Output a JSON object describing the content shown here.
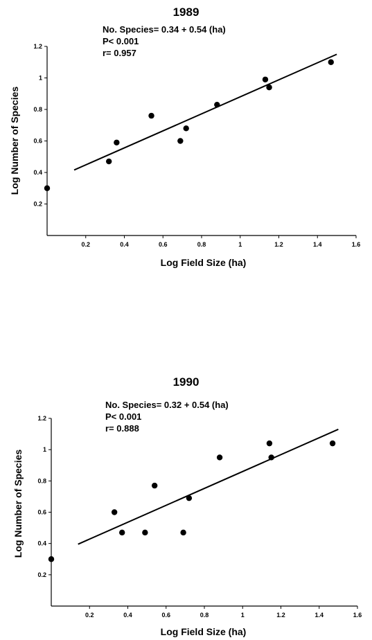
{
  "chart_data": [
    {
      "type": "scatter",
      "title": "1989",
      "xlabel": "Log Field Size (ha)",
      "ylabel": "Log Number of Species",
      "xlim": [
        0,
        1.6
      ],
      "ylim": [
        0,
        1.2
      ],
      "xticks": [
        "0.2",
        "0.4",
        "0.6",
        "0.8",
        "1",
        "1.2",
        "1.4",
        "1.6"
      ],
      "yticks": [
        "0.2",
        "0.4",
        "0.6",
        "0.8",
        "1",
        "1.2"
      ],
      "annotations": [
        "No. Species= 0.34 + 0.54 (ha)",
        "P< 0.001",
        "r= 0.957"
      ],
      "points": [
        {
          "x": 0.0,
          "y": 0.3
        },
        {
          "x": 0.32,
          "y": 0.47
        },
        {
          "x": 0.36,
          "y": 0.59
        },
        {
          "x": 0.54,
          "y": 0.76
        },
        {
          "x": 0.69,
          "y": 0.6
        },
        {
          "x": 0.72,
          "y": 0.68
        },
        {
          "x": 0.88,
          "y": 0.83
        },
        {
          "x": 1.13,
          "y": 0.99
        },
        {
          "x": 1.15,
          "y": 0.94
        },
        {
          "x": 1.47,
          "y": 1.1
        }
      ],
      "fit": {
        "intercept": 0.34,
        "slope": 0.54,
        "x_range": [
          0.14,
          1.5
        ]
      },
      "grid": false
    },
    {
      "type": "scatter",
      "title": "1990",
      "xlabel": "Log Field Size (ha)",
      "ylabel": "Log Number of Species",
      "xlim": [
        0,
        1.6
      ],
      "ylim": [
        0,
        1.2
      ],
      "xticks": [
        "0.2",
        "0.4",
        "0.6",
        "0.8",
        "1",
        "1.2",
        "1.4",
        "1.6"
      ],
      "yticks": [
        "0.2",
        "0.4",
        "0.6",
        "0.8",
        "1",
        "1.2"
      ],
      "annotations": [
        "No. Species= 0.32 + 0.54 (ha)",
        "P< 0.001",
        "r= 0.888"
      ],
      "points": [
        {
          "x": 0.0,
          "y": 0.3
        },
        {
          "x": 0.33,
          "y": 0.6
        },
        {
          "x": 0.37,
          "y": 0.47
        },
        {
          "x": 0.49,
          "y": 0.47
        },
        {
          "x": 0.54,
          "y": 0.77
        },
        {
          "x": 0.69,
          "y": 0.47
        },
        {
          "x": 0.72,
          "y": 0.69
        },
        {
          "x": 0.88,
          "y": 0.95
        },
        {
          "x": 1.14,
          "y": 1.04
        },
        {
          "x": 1.15,
          "y": 0.95
        },
        {
          "x": 1.47,
          "y": 1.04
        }
      ],
      "fit": {
        "intercept": 0.32,
        "slope": 0.54,
        "x_range": [
          0.14,
          1.5
        ]
      },
      "grid": false
    }
  ]
}
